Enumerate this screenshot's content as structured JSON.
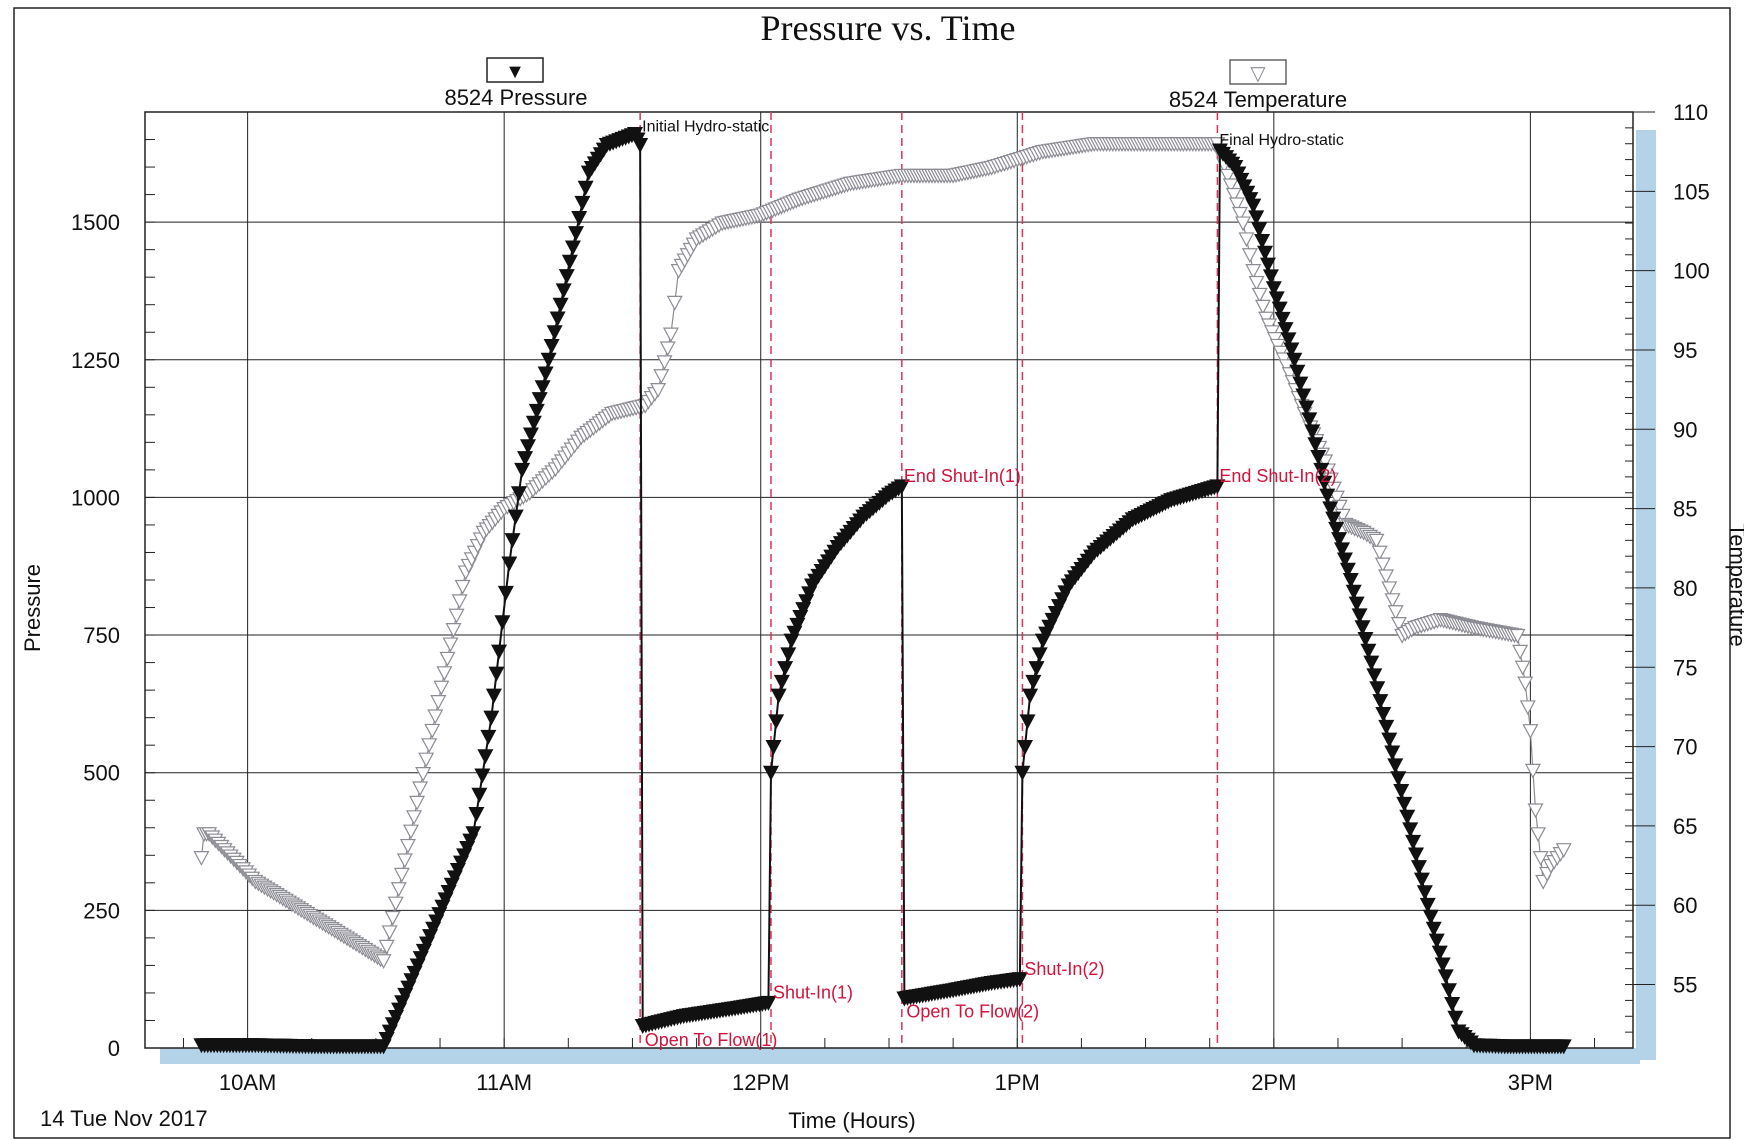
{
  "chart_data": {
    "type": "line",
    "title": "Pressure vs. Time",
    "xlabel": "Time (Hours)",
    "ylabel": "Pressure",
    "y2label": "Temperature",
    "date_label": "14 Tue Nov 2017",
    "xlim": [
      9.6,
      15.4
    ],
    "ylim": [
      0,
      1700
    ],
    "y2lim": [
      51,
      110
    ],
    "x_ticks": [
      {
        "value": 10,
        "label": "10AM"
      },
      {
        "value": 11,
        "label": "11AM"
      },
      {
        "value": 12,
        "label": "12PM"
      },
      {
        "value": 13,
        "label": "1PM"
      },
      {
        "value": 14,
        "label": "2PM"
      },
      {
        "value": 15,
        "label": "3PM"
      }
    ],
    "y_ticks": [
      0,
      250,
      500,
      750,
      1000,
      1250,
      1500
    ],
    "y2_ticks": [
      55,
      60,
      65,
      70,
      75,
      80,
      85,
      90,
      95,
      100,
      105,
      110
    ],
    "grid": true,
    "legend": [
      {
        "name": "8524 Pressure",
        "marker": "▼",
        "color": "#111111"
      },
      {
        "name": "8524 Temperature",
        "marker": "▽",
        "color": "#8c8c94"
      }
    ],
    "series": [
      {
        "name": "8524 Pressure",
        "axis": "left",
        "color": "#111111",
        "marker": "filled-triangle-down",
        "points": [
          [
            9.82,
            5
          ],
          [
            10.03,
            5
          ],
          [
            10.25,
            3
          ],
          [
            10.53,
            3
          ],
          [
            10.88,
            390
          ],
          [
            10.95,
            600
          ],
          [
            10.98,
            720
          ],
          [
            11.02,
            880
          ],
          [
            11.07,
            1050
          ],
          [
            11.15,
            1200
          ],
          [
            11.22,
            1350
          ],
          [
            11.28,
            1480
          ],
          [
            11.33,
            1590
          ],
          [
            11.4,
            1640
          ],
          [
            11.51,
            1660
          ],
          [
            11.53,
            1640
          ],
          [
            11.54,
            40
          ],
          [
            11.7,
            58
          ],
          [
            11.9,
            72
          ],
          [
            12.03,
            82
          ],
          [
            12.04,
            500
          ],
          [
            12.07,
            640
          ],
          [
            12.12,
            740
          ],
          [
            12.2,
            840
          ],
          [
            12.3,
            910
          ],
          [
            12.4,
            965
          ],
          [
            12.5,
            1005
          ],
          [
            12.55,
            1020
          ],
          [
            12.56,
            90
          ],
          [
            12.75,
            105
          ],
          [
            12.9,
            118
          ],
          [
            13.01,
            125
          ],
          [
            13.02,
            500
          ],
          [
            13.05,
            640
          ],
          [
            13.1,
            740
          ],
          [
            13.2,
            840
          ],
          [
            13.3,
            900
          ],
          [
            13.45,
            960
          ],
          [
            13.6,
            995
          ],
          [
            13.78,
            1020
          ],
          [
            13.79,
            1630
          ],
          [
            13.85,
            1600
          ],
          [
            13.92,
            1530
          ],
          [
            14.0,
            1380
          ],
          [
            14.08,
            1250
          ],
          [
            14.15,
            1120
          ],
          [
            14.22,
            980
          ],
          [
            14.3,
            850
          ],
          [
            14.38,
            700
          ],
          [
            14.45,
            560
          ],
          [
            14.52,
            420
          ],
          [
            14.6,
            260
          ],
          [
            14.67,
            130
          ],
          [
            14.72,
            30
          ],
          [
            14.78,
            5
          ],
          [
            14.9,
            3
          ],
          [
            15.05,
            3
          ],
          [
            15.13,
            3
          ]
        ]
      },
      {
        "name": "8524 Temperature",
        "axis": "right",
        "color": "#8c8c94",
        "marker": "open-triangle-down",
        "points": [
          [
            9.82,
            63
          ],
          [
            9.83,
            64.5
          ],
          [
            9.85,
            64.5
          ],
          [
            10.03,
            61.5
          ],
          [
            10.53,
            56.5
          ],
          [
            10.85,
            81
          ],
          [
            10.92,
            83.5
          ],
          [
            11.0,
            85
          ],
          [
            11.1,
            86
          ],
          [
            11.2,
            87.5
          ],
          [
            11.3,
            89.5
          ],
          [
            11.42,
            91
          ],
          [
            11.55,
            91.5
          ],
          [
            11.6,
            92.5
          ],
          [
            11.65,
            96
          ],
          [
            11.68,
            100
          ],
          [
            11.75,
            102
          ],
          [
            11.85,
            103
          ],
          [
            12.0,
            103.5
          ],
          [
            12.15,
            104.5
          ],
          [
            12.35,
            105.5
          ],
          [
            12.55,
            106
          ],
          [
            12.75,
            106
          ],
          [
            12.9,
            106.5
          ],
          [
            13.0,
            107
          ],
          [
            13.1,
            107.5
          ],
          [
            13.3,
            108
          ],
          [
            13.6,
            108
          ],
          [
            13.78,
            108
          ],
          [
            13.82,
            106
          ],
          [
            13.88,
            103
          ],
          [
            13.92,
            100
          ],
          [
            13.97,
            97
          ],
          [
            14.05,
            94
          ],
          [
            14.12,
            91
          ],
          [
            14.2,
            88
          ],
          [
            14.28,
            84
          ],
          [
            14.35,
            83.5
          ],
          [
            14.4,
            83
          ],
          [
            14.45,
            80
          ],
          [
            14.5,
            77
          ],
          [
            14.55,
            77.5
          ],
          [
            14.65,
            78
          ],
          [
            14.78,
            77.5
          ],
          [
            14.95,
            77
          ],
          [
            14.98,
            74
          ],
          [
            15.0,
            71
          ],
          [
            15.02,
            66
          ],
          [
            15.05,
            61.5
          ],
          [
            15.08,
            62.5
          ],
          [
            15.13,
            63.5
          ]
        ]
      }
    ],
    "event_lines": [
      {
        "x": 11.53,
        "label": "Initial Hydro-static",
        "label_style": "black",
        "label_y": 1665
      },
      {
        "x": 12.04,
        "label": "Shut-In(1)",
        "label_style": "red",
        "label_y": 90
      },
      {
        "x": 12.55,
        "label": "End Shut-In(1)",
        "label_style": "red",
        "label_y": 1028
      },
      {
        "x": 13.02,
        "label": "Shut-In(2)",
        "label_style": "red",
        "label_y": 133
      },
      {
        "x": 13.78,
        "label": "End Shut-In(2)",
        "label_style": "red",
        "label_y": 1028
      },
      {
        "x": 13.78,
        "label": "Final Hydro-static",
        "label_style": "black",
        "label_y": 1640,
        "no_line": true
      }
    ],
    "flow_labels": [
      {
        "x": 11.54,
        "y": 40,
        "label": "Open To Flow(1)"
      },
      {
        "x": 12.56,
        "y": 92,
        "label": "Open To Flow(2)"
      }
    ]
  }
}
